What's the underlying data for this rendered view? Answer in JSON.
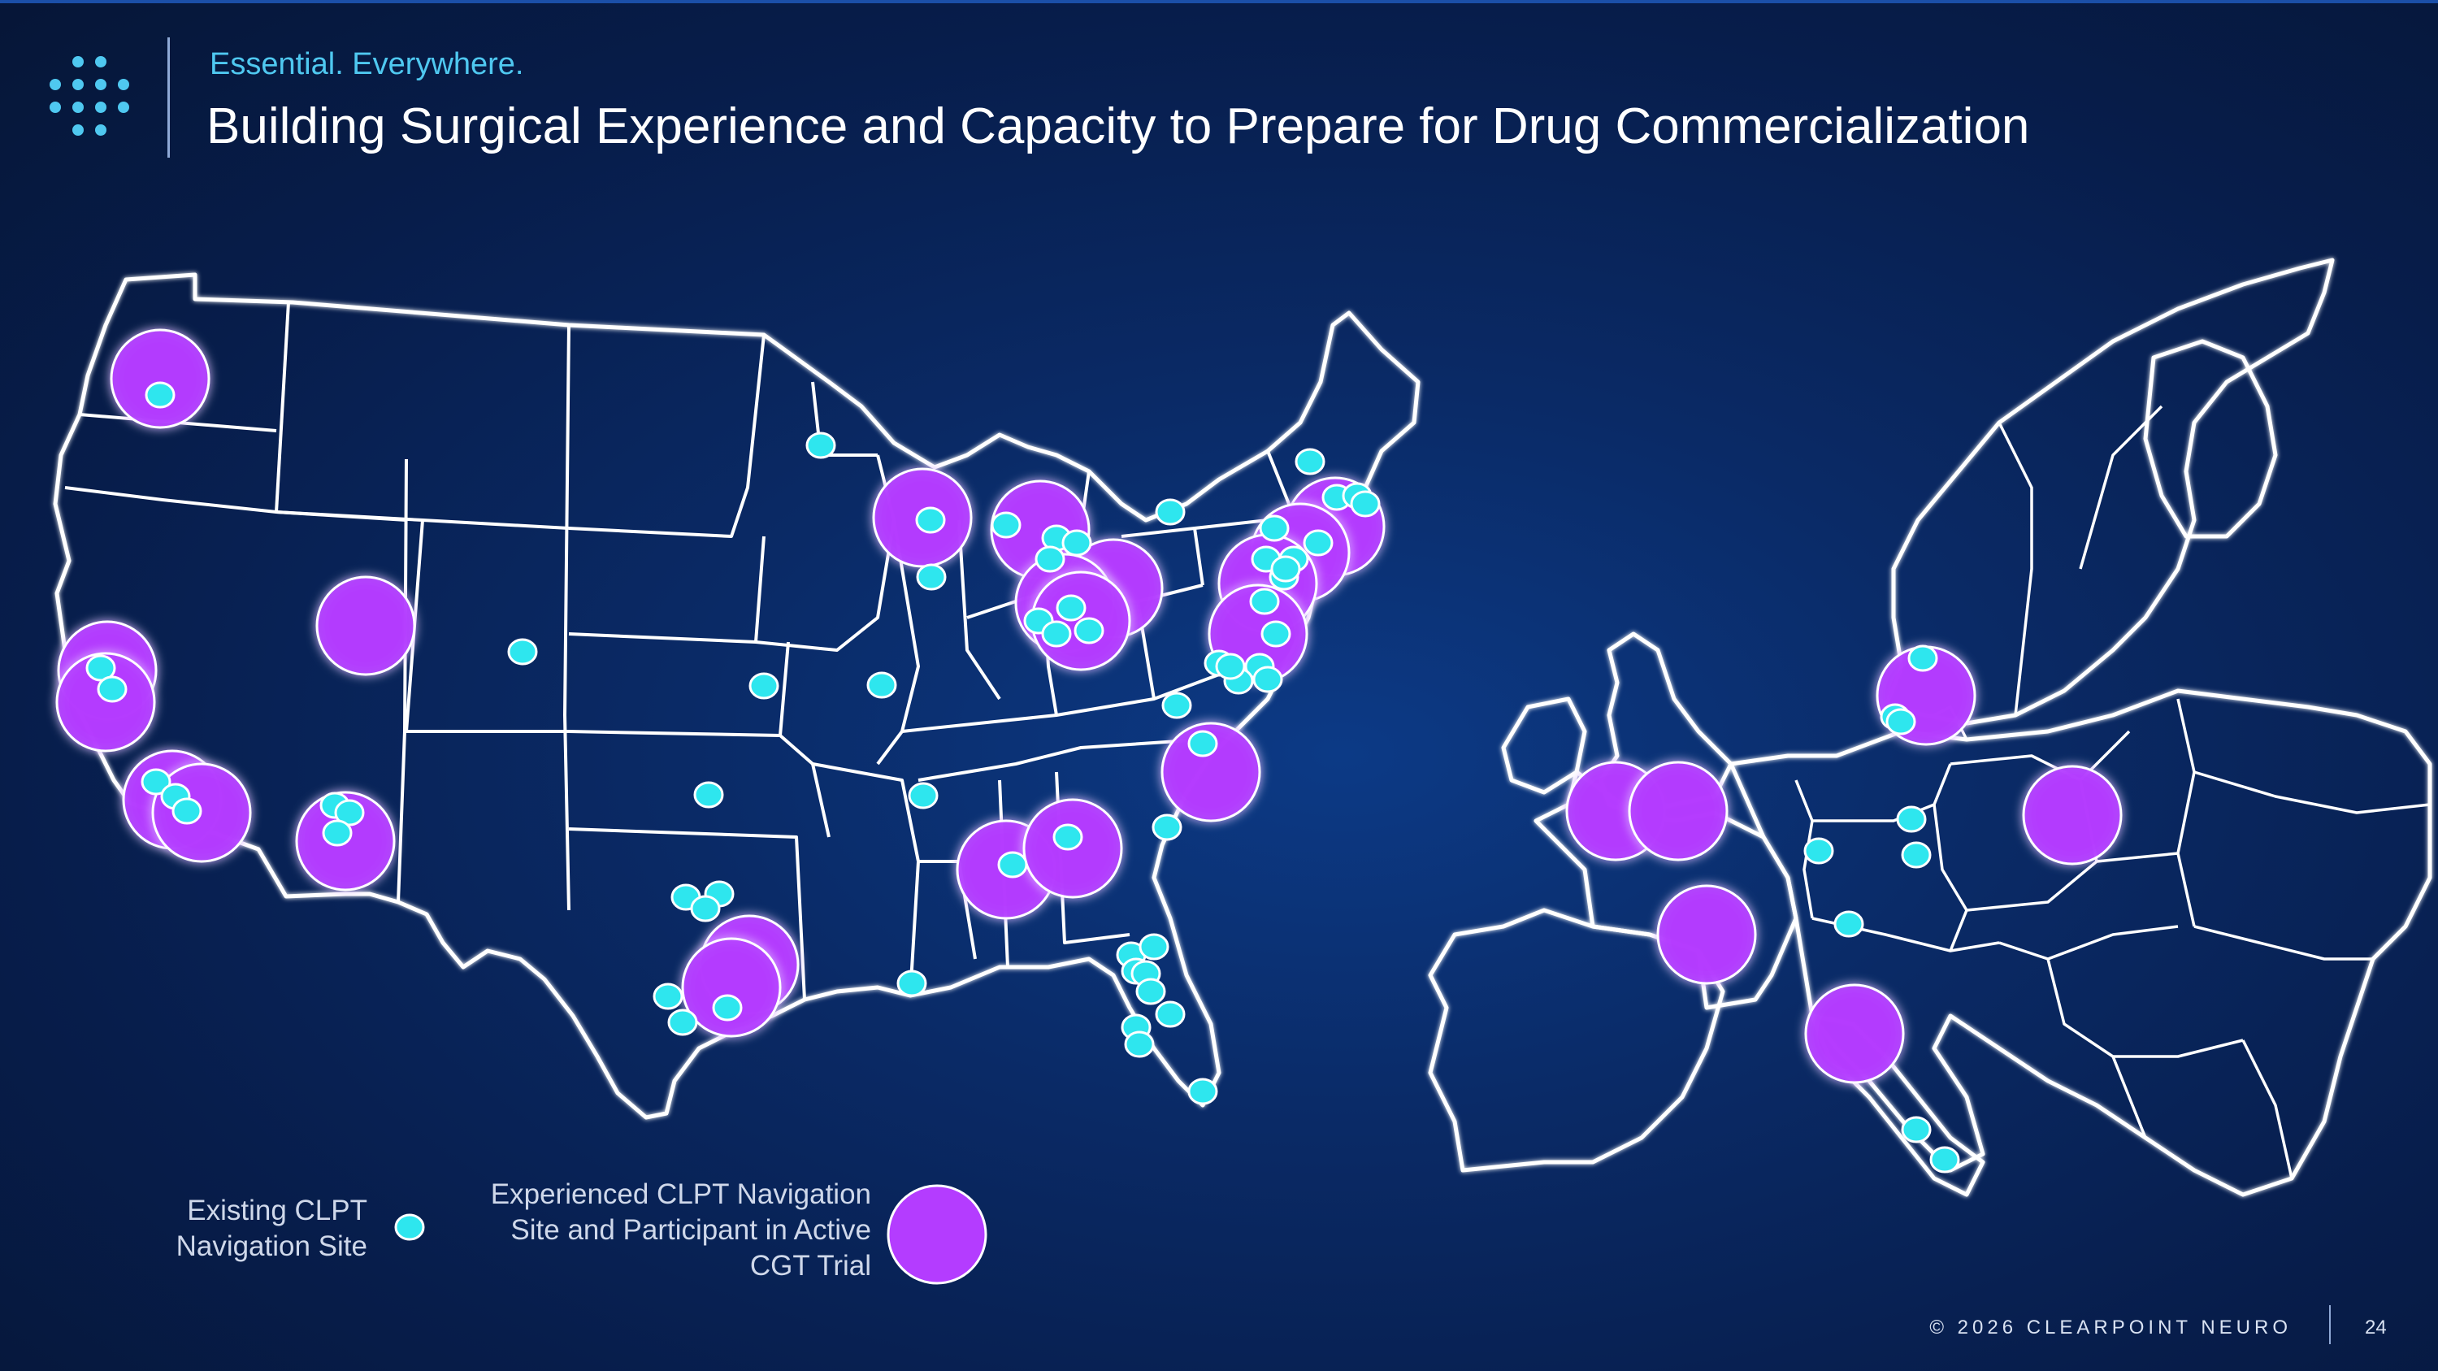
{
  "header": {
    "tagline": "Essential. Everywhere.",
    "title": "Building Surgical Experience and Capacity to Prepare for Drug Commercialization"
  },
  "legend": {
    "existing_site": "Existing CLPT Navigation Site",
    "experienced_site": "Experienced CLPT Navigation Site and Participant in Active CGT Trial"
  },
  "footer": {
    "copyright": "© 2026 CLEARPOINT NEURO",
    "page_number": "24"
  },
  "colors": {
    "existing_site": "#2ee6ee",
    "experienced_site": "#b43cff",
    "accent_text": "#4fc8f0",
    "map_outline": "#ffffff"
  },
  "icons": {
    "logo": "dot-grid-logo-icon"
  }
}
